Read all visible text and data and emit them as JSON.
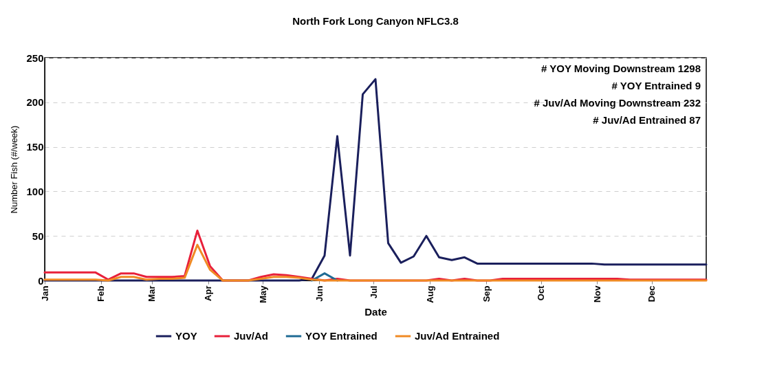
{
  "chart_data": {
    "type": "line",
    "title": "North Fork Long Canyon NFLC3.8",
    "xlabel": "Date",
    "ylabel": "Number Fish (#/week)",
    "x": [
      "--01-01",
      "--01-08",
      "--01-15",
      "--01-22",
      "--01-29",
      "--02-05",
      "--02-12",
      "--02-19",
      "--02-26",
      "--03-05",
      "--03-12",
      "--03-19",
      "--03-26",
      "--04-02",
      "--04-09",
      "--04-16",
      "--04-23",
      "--04-30",
      "--05-07",
      "--05-14",
      "--05-21",
      "--05-28",
      "--06-04",
      "--06-11",
      "--06-18",
      "--06-25",
      "--07-02",
      "--07-09",
      "--07-16",
      "--07-23",
      "--07-30",
      "--08-06",
      "--08-13",
      "--08-20",
      "--08-27",
      "--09-03",
      "--09-10",
      "--09-17",
      "--09-24",
      "--10-01",
      "--10-08",
      "--10-15",
      "--10-22",
      "--10-29",
      "--11-05",
      "--11-12",
      "--11-19",
      "--11-26",
      "--12-03",
      "--12-10",
      "--12-17",
      "--12-24",
      "--12-31"
    ],
    "series": [
      {
        "name": "YOY",
        "color": "#1a1f5c",
        "values": [
          0,
          0,
          0,
          0,
          0,
          0,
          0,
          0,
          0,
          0,
          0,
          0,
          0,
          0,
          0,
          0,
          0,
          0,
          0,
          0,
          0,
          2,
          28,
          162,
          28,
          209,
          226,
          42,
          20,
          27,
          50,
          26,
          23,
          26,
          19,
          19,
          19,
          19,
          19,
          19,
          19,
          19,
          19,
          19,
          18,
          18,
          18,
          18,
          18,
          18,
          18,
          18,
          18
        ]
      },
      {
        "name": "Juv/Ad",
        "color": "#e8203a",
        "values": [
          9,
          9,
          9,
          9,
          9,
          1,
          8,
          8,
          4,
          4,
          4,
          5,
          56,
          16,
          0,
          0,
          0,
          4,
          7,
          6,
          4,
          2,
          0,
          2,
          0,
          0,
          0,
          0,
          0,
          0,
          0,
          2,
          0,
          2,
          0,
          0,
          2,
          2,
          2,
          2,
          2,
          2,
          2,
          2,
          2,
          2,
          1,
          1,
          1,
          1,
          1,
          1,
          1
        ]
      },
      {
        "name": "YOY Entrained",
        "color": "#1f6b94",
        "values": [
          null,
          null,
          null,
          null,
          null,
          null,
          null,
          null,
          null,
          null,
          null,
          null,
          null,
          null,
          null,
          null,
          null,
          null,
          null,
          null,
          null,
          0,
          8,
          0,
          null,
          null,
          null,
          null,
          null,
          null,
          null,
          null,
          null,
          null,
          null,
          null,
          null,
          null,
          null,
          null,
          null,
          null,
          null,
          null,
          null,
          null,
          null,
          null,
          null,
          null,
          null,
          null,
          null
        ]
      },
      {
        "name": "Juv/Ad Entrained",
        "color": "#f08a24",
        "values": [
          1,
          1,
          1,
          1,
          1,
          0,
          4,
          4,
          1,
          2,
          2,
          3,
          40,
          12,
          0,
          0,
          0,
          2,
          4,
          4,
          3,
          1,
          0,
          0,
          0,
          0,
          0,
          0,
          0,
          0,
          0,
          0,
          0,
          0,
          0,
          0,
          0,
          0,
          0,
          0,
          0,
          0,
          0,
          0,
          0,
          0,
          0,
          0,
          0,
          0,
          0,
          0,
          0
        ]
      }
    ],
    "xlim": [
      "--01-01",
      "--12-31"
    ],
    "xticks": [
      {
        "value": "--01-01",
        "label": "Jan"
      },
      {
        "value": "--02-01",
        "label": "Feb"
      },
      {
        "value": "--03-01",
        "label": "Mar"
      },
      {
        "value": "--04-01",
        "label": "Apr"
      },
      {
        "value": "--05-01",
        "label": "May"
      },
      {
        "value": "--06-01",
        "label": "Jun"
      },
      {
        "value": "--07-01",
        "label": "Jul"
      },
      {
        "value": "--08-01",
        "label": "Aug"
      },
      {
        "value": "--09-01",
        "label": "Sep"
      },
      {
        "value": "--10-01",
        "label": "Oct"
      },
      {
        "value": "--11-01",
        "label": "Nov"
      },
      {
        "value": "--12-01",
        "label": "Dec"
      }
    ],
    "ylim": [
      0,
      250
    ],
    "yticks": [
      0,
      50,
      100,
      150,
      200,
      250
    ],
    "grid": "y",
    "legend": "bottom",
    "marker": "none",
    "line_style": "solid",
    "annotations": [
      "# YOY Moving Downstream  1298",
      "# YOY Entrained  9",
      "#  Juv/Ad Moving Downstream  232",
      "#  Juv/Ad Entrained  87"
    ]
  }
}
